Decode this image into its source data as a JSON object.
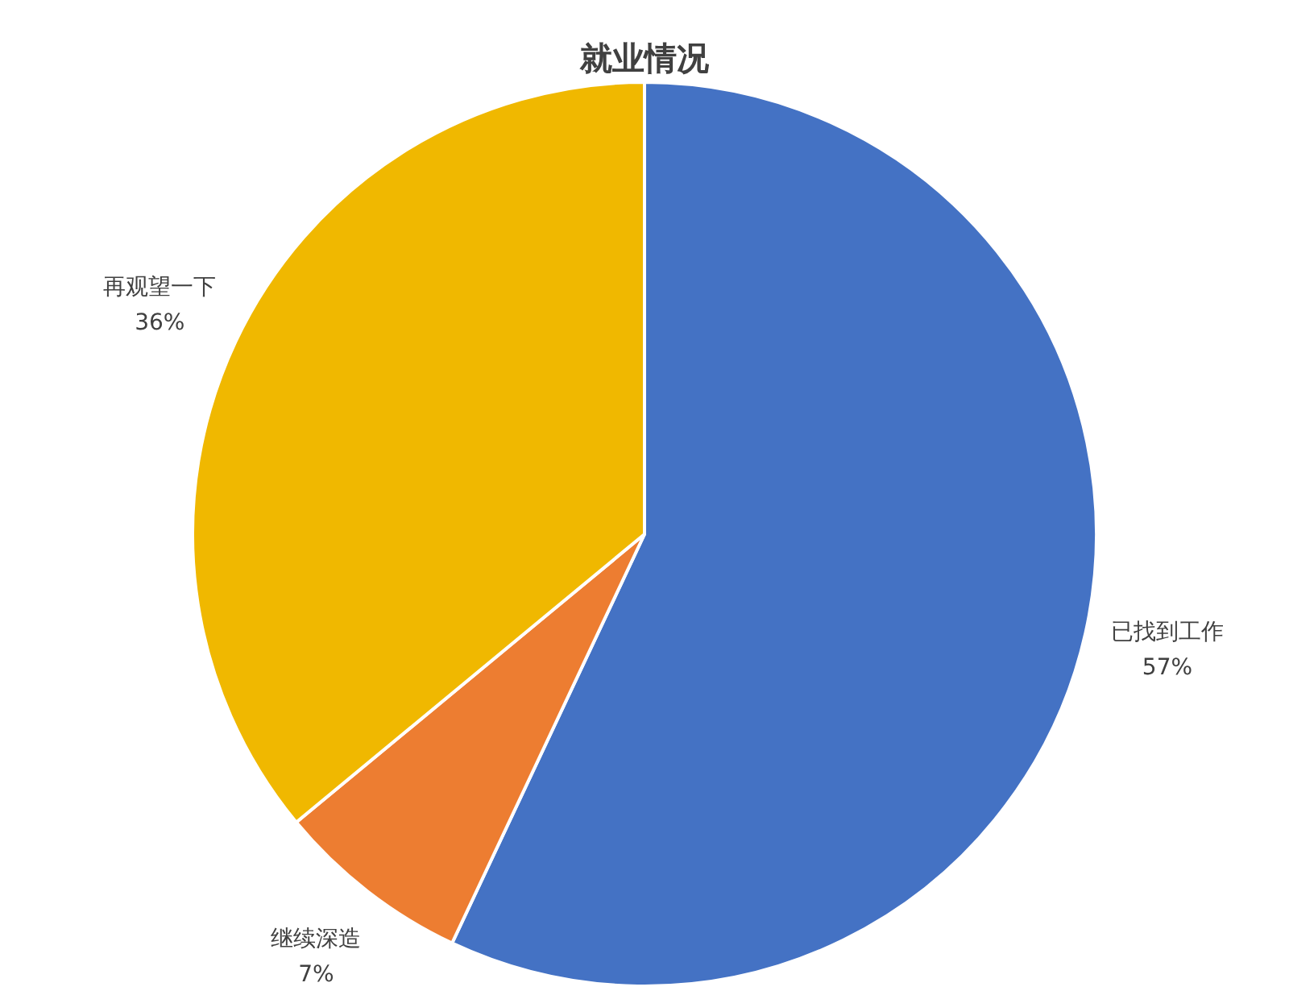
{
  "chart_data": {
    "type": "pie",
    "title": "就业情况",
    "categories": [
      "已找到工作",
      "继续深造",
      "再观望一下"
    ],
    "values": [
      57,
      7,
      36
    ],
    "value_labels": [
      "57%",
      "7%",
      "36%"
    ],
    "colors": [
      "#4472c4",
      "#ed7d31",
      "#f0b800"
    ],
    "legend": false
  }
}
